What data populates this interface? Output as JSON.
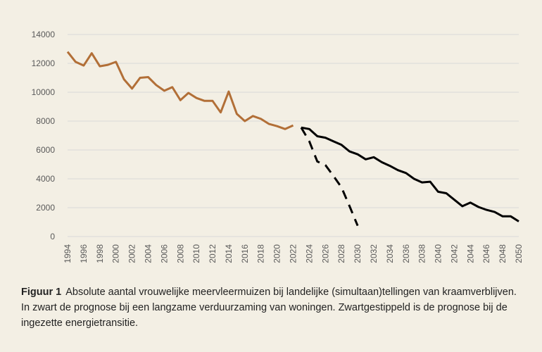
{
  "chart_data": {
    "type": "line",
    "title": "",
    "xlabel": "",
    "ylabel": "",
    "ylim": [
      0,
      14000
    ],
    "yticks": [
      0,
      2000,
      4000,
      6000,
      8000,
      10000,
      12000,
      14000
    ],
    "xlim": [
      1994,
      2050
    ],
    "xticks": [
      1994,
      1996,
      1998,
      2000,
      2002,
      2004,
      2006,
      2008,
      2010,
      2012,
      2014,
      2016,
      2018,
      2020,
      2022,
      2024,
      2026,
      2028,
      2030,
      2032,
      2034,
      2036,
      2038,
      2040,
      2042,
      2044,
      2046,
      2048,
      2050
    ],
    "grid": true,
    "series": [
      {
        "name": "Tellingen",
        "color": "#b26f37",
        "dash": "solid",
        "x": [
          1994,
          1995,
          1996,
          1997,
          1998,
          1999,
          2000,
          2001,
          2002,
          2003,
          2004,
          2005,
          2006,
          2007,
          2008,
          2009,
          2010,
          2011,
          2012,
          2013,
          2014,
          2015,
          2016,
          2017,
          2018,
          2019,
          2020,
          2021,
          2022
        ],
        "y": [
          12800,
          12100,
          11850,
          12700,
          11800,
          11900,
          12100,
          10900,
          10250,
          11000,
          11050,
          10500,
          10100,
          10350,
          9450,
          9950,
          9600,
          9400,
          9400,
          8600,
          10050,
          8500,
          8000,
          8350,
          8150,
          7800,
          7650,
          7450,
          7700
        ]
      },
      {
        "name": "Prognose langzame verduurzaming",
        "color": "#000000",
        "dash": "solid",
        "x": [
          2023,
          2024,
          2025,
          2026,
          2027,
          2028,
          2029,
          2030,
          2031,
          2032,
          2033,
          2034,
          2035,
          2036,
          2037,
          2038,
          2039,
          2040,
          2041,
          2042,
          2043,
          2044,
          2045,
          2046,
          2047,
          2048,
          2049,
          2050
        ],
        "y": [
          7550,
          7450,
          6950,
          6850,
          6600,
          6350,
          5900,
          5700,
          5350,
          5500,
          5150,
          4900,
          4600,
          4400,
          4000,
          3750,
          3800,
          3100,
          3000,
          2550,
          2100,
          2350,
          2050,
          1850,
          1700,
          1400,
          1400,
          1050
        ]
      },
      {
        "name": "Prognose ingezette energietransitie",
        "color": "#000000",
        "dash": "dashed",
        "x": [
          2023,
          2024,
          2025,
          2026,
          2027,
          2028,
          2029,
          2030
        ],
        "y": [
          7550,
          6600,
          5200,
          4950,
          4200,
          3400,
          2100,
          750
        ]
      }
    ]
  },
  "caption": {
    "label": "Figuur 1",
    "text": "Absolute aantal vrouwelijke meervleermuizen bij landelijke (simultaan)tellingen van kraamverblijven. In zwart de prognose bij een langzame verduurzaming van woningen. Zwartgestippeld is de prognose bij de ingezette energietransitie."
  }
}
